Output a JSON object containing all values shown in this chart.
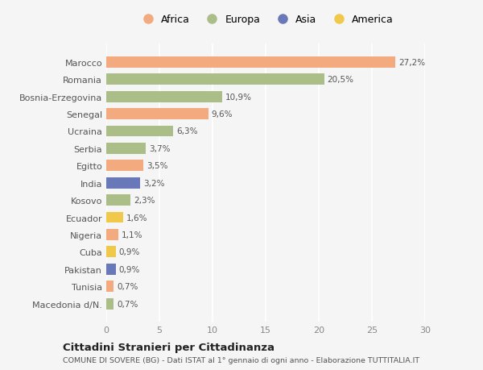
{
  "countries": [
    "Marocco",
    "Romania",
    "Bosnia-Erzegovina",
    "Senegal",
    "Ucraina",
    "Serbia",
    "Egitto",
    "India",
    "Kosovo",
    "Ecuador",
    "Nigeria",
    "Cuba",
    "Pakistan",
    "Tunisia",
    "Macedonia d/N."
  ],
  "values": [
    27.2,
    20.5,
    10.9,
    9.6,
    6.3,
    3.7,
    3.5,
    3.2,
    2.3,
    1.6,
    1.1,
    0.9,
    0.9,
    0.7,
    0.7
  ],
  "labels": [
    "27,2%",
    "20,5%",
    "10,9%",
    "9,6%",
    "6,3%",
    "3,7%",
    "3,5%",
    "3,2%",
    "2,3%",
    "1,6%",
    "1,1%",
    "0,9%",
    "0,9%",
    "0,7%",
    "0,7%"
  ],
  "continents": [
    "Africa",
    "Europa",
    "Europa",
    "Africa",
    "Europa",
    "Europa",
    "Africa",
    "Asia",
    "Europa",
    "America",
    "Africa",
    "America",
    "Asia",
    "Africa",
    "Europa"
  ],
  "colors": {
    "Africa": "#F2AA7E",
    "Europa": "#ABBE88",
    "Asia": "#6878B8",
    "America": "#F0C84A"
  },
  "bg_color": "#f5f5f5",
  "title": "Cittadini Stranieri per Cittadinanza",
  "subtitle": "COMUNE DI SOVERE (BG) - Dati ISTAT al 1° gennaio di ogni anno - Elaborazione TUTTITALIA.IT",
  "xlim": [
    0,
    30
  ],
  "xticks": [
    0,
    5,
    10,
    15,
    20,
    25,
    30
  ],
  "legend_order": [
    "Africa",
    "Europa",
    "Asia",
    "America"
  ]
}
